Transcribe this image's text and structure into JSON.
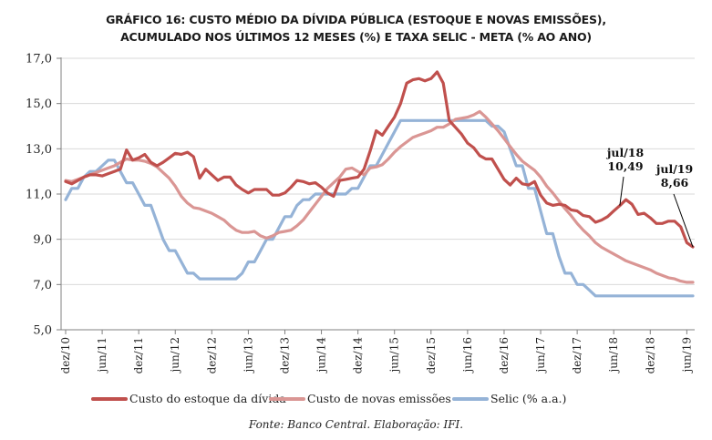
{
  "chart_data": {
    "type": "line",
    "title": "GRÁFICO 16: CUSTO MÉDIO DA DÍVIDA PÚBLICA (ESTOQUE E NOVAS EMISSÕES), ACUMULADO NOS ÚLTIMOS 12 MESES (%) E TAXA SELIC - META (% AO ANO)",
    "title_lines": [
      "GRÁFICO 16: CUSTO MÉDIO DA DÍVIDA PÚBLICA (ESTOQUE E NOVAS EMISSÕES),",
      "ACUMULADO NOS ÚLTIMOS 12 MESES (%) E TAXA SELIC - META (% AO ANO)"
    ],
    "xlabel": "",
    "ylabel": "",
    "ylim": [
      5.0,
      17.0
    ],
    "yticks": [
      "5,0",
      "7,0",
      "9,0",
      "11,0",
      "13,0",
      "15,0",
      "17,0"
    ],
    "ytick_values": [
      5,
      7,
      9,
      11,
      13,
      15,
      17
    ],
    "grid": true,
    "x_start": "dez/10",
    "x_end": "jul/19",
    "xtick_labels": [
      "dez/10",
      "jun/11",
      "dez/11",
      "jun/12",
      "dez/12",
      "jun/13",
      "dez/13",
      "jun/14",
      "dez/14",
      "jun/15",
      "dez/15",
      "jun/16",
      "dez/16",
      "jun/17",
      "dez/17",
      "jun/18",
      "dez/18",
      "jun/19"
    ],
    "xtick_month_index": [
      0,
      6,
      12,
      18,
      24,
      30,
      36,
      42,
      48,
      54,
      60,
      66,
      72,
      78,
      84,
      90,
      96,
      102
    ],
    "legend_position": "bottom",
    "series": [
      {
        "name": "Custo do estoque da dívida",
        "color": "#c0504d",
        "values": [
          11.55,
          11.45,
          11.6,
          11.75,
          11.85,
          11.85,
          11.8,
          11.9,
          12.0,
          12.1,
          12.95,
          12.5,
          12.6,
          12.75,
          12.4,
          12.25,
          12.4,
          12.6,
          12.8,
          12.75,
          12.85,
          12.65,
          11.7,
          12.1,
          11.85,
          11.6,
          11.75,
          11.75,
          11.4,
          11.2,
          11.05,
          11.2,
          11.2,
          11.2,
          10.95,
          10.95,
          11.05,
          11.3,
          11.6,
          11.55,
          11.45,
          11.5,
          11.3,
          11.05,
          10.9,
          11.6,
          11.65,
          11.7,
          11.75,
          12.1,
          12.9,
          13.8,
          13.6,
          14.0,
          14.4,
          15.0,
          15.9,
          16.05,
          16.1,
          16.0,
          16.1,
          16.4,
          15.9,
          14.25,
          13.95,
          13.65,
          13.25,
          13.05,
          12.7,
          12.55,
          12.55,
          12.1,
          11.65,
          11.4,
          11.7,
          11.45,
          11.4,
          11.55,
          10.95,
          10.6,
          10.5,
          10.55,
          10.5,
          10.3,
          10.25,
          10.05,
          10.0,
          9.75,
          9.85,
          10.0,
          10.25,
          10.49,
          10.75,
          10.55,
          10.1,
          10.15,
          9.95,
          9.7,
          9.7,
          9.8,
          9.8,
          9.55,
          8.85,
          8.66
        ]
      },
      {
        "name": "Custo de novas emissões",
        "color": "#da9694",
        "values": [
          11.6,
          11.55,
          11.65,
          11.75,
          11.85,
          11.95,
          12.05,
          12.15,
          12.25,
          12.4,
          12.55,
          12.5,
          12.5,
          12.45,
          12.35,
          12.2,
          11.95,
          11.7,
          11.35,
          10.9,
          10.6,
          10.4,
          10.35,
          10.25,
          10.15,
          10.0,
          9.85,
          9.6,
          9.4,
          9.3,
          9.3,
          9.35,
          9.15,
          9.05,
          9.15,
          9.3,
          9.35,
          9.4,
          9.6,
          9.85,
          10.2,
          10.55,
          10.9,
          11.25,
          11.5,
          11.75,
          12.1,
          12.15,
          12.0,
          11.85,
          12.15,
          12.2,
          12.3,
          12.55,
          12.85,
          13.1,
          13.3,
          13.5,
          13.6,
          13.7,
          13.8,
          13.95,
          13.95,
          14.1,
          14.3,
          14.35,
          14.4,
          14.5,
          14.65,
          14.4,
          14.1,
          13.8,
          13.45,
          13.1,
          12.75,
          12.45,
          12.25,
          12.05,
          11.75,
          11.35,
          11.05,
          10.7,
          10.35,
          10.05,
          9.7,
          9.4,
          9.15,
          8.85,
          8.65,
          8.5,
          8.35,
          8.2,
          8.05,
          7.95,
          7.85,
          7.75,
          7.65,
          7.5,
          7.4,
          7.3,
          7.25,
          7.15,
          7.1,
          7.1
        ]
      },
      {
        "name": "Selic (% a.a.)",
        "color": "#95b3d7",
        "values": [
          10.75,
          11.25,
          11.25,
          11.75,
          12.0,
          12.0,
          12.25,
          12.5,
          12.5,
          12.0,
          11.5,
          11.5,
          11.0,
          10.5,
          10.5,
          9.75,
          9.0,
          8.5,
          8.5,
          8.0,
          7.5,
          7.5,
          7.25,
          7.25,
          7.25,
          7.25,
          7.25,
          7.25,
          7.25,
          7.5,
          8.0,
          8.0,
          8.5,
          9.0,
          9.0,
          9.5,
          10.0,
          10.0,
          10.5,
          10.75,
          10.75,
          11.0,
          11.0,
          11.0,
          11.0,
          11.0,
          11.0,
          11.25,
          11.25,
          11.75,
          12.25,
          12.25,
          12.75,
          13.25,
          13.75,
          14.25,
          14.25,
          14.25,
          14.25,
          14.25,
          14.25,
          14.25,
          14.25,
          14.25,
          14.25,
          14.25,
          14.25,
          14.25,
          14.25,
          14.25,
          14.0,
          14.0,
          13.75,
          13.0,
          12.25,
          12.25,
          11.25,
          11.25,
          10.25,
          9.25,
          9.25,
          8.25,
          7.5,
          7.5,
          7.0,
          7.0,
          6.75,
          6.5,
          6.5,
          6.5,
          6.5,
          6.5,
          6.5,
          6.5,
          6.5,
          6.5,
          6.5,
          6.5,
          6.5,
          6.5,
          6.5,
          6.5,
          6.5,
          6.5
        ]
      }
    ],
    "annotations": [
      {
        "label": "jul/18",
        "value_label": "10,49",
        "series": "Custo do estoque da dívida",
        "month_index": 91,
        "value": 10.49
      },
      {
        "label": "jul/19",
        "value_label": "8,66",
        "series": "Custo do estoque da dívida",
        "month_index": 103,
        "value": 8.66
      }
    ]
  },
  "legend": {
    "items": [
      {
        "label": "Custo do estoque da dívida",
        "color": "#c0504d"
      },
      {
        "label": "Custo de novas emissões",
        "color": "#da9694"
      },
      {
        "label": "Selic (% a.a.)",
        "color": "#95b3d7"
      }
    ]
  },
  "source": "Fonte: Banco Central. Elaboração: IFI."
}
